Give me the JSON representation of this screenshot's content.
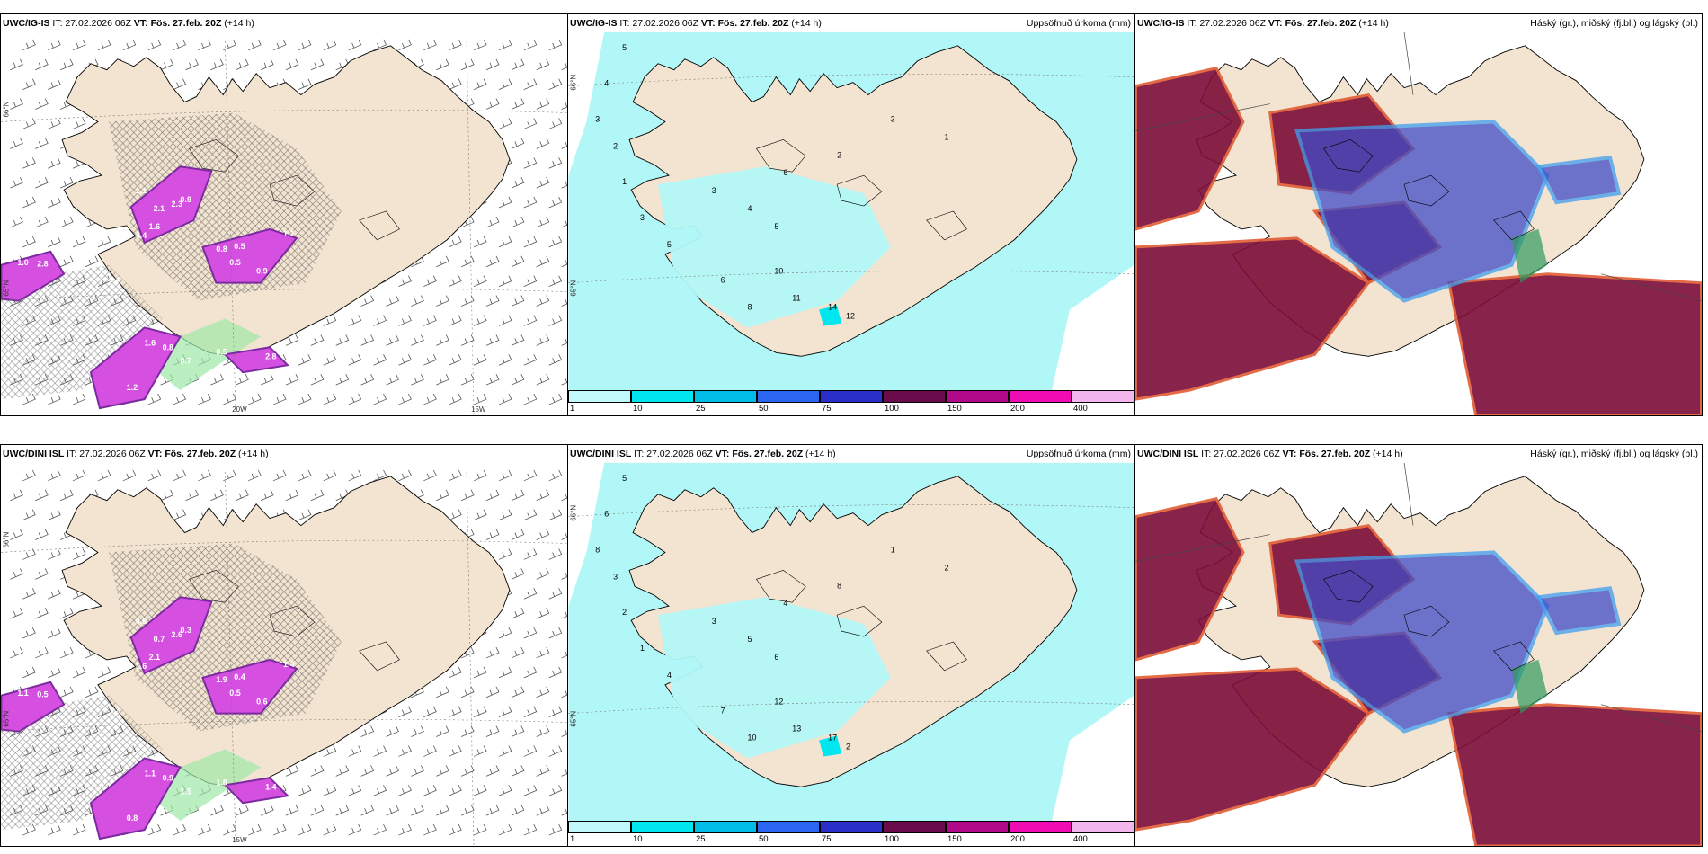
{
  "rows": [
    {
      "model": "UWC/IG-IS",
      "panels": [
        {
          "header_it_label": "IT:",
          "header_it": "27.02.2026 06Z",
          "header_vt_label": "VT:",
          "header_vt": "Fös. 27.feb. 20Z",
          "header_lead": "(+14 h)",
          "right_title": "",
          "precip_labels": [
            "1.0",
            "2.8",
            "1.1",
            "2.1",
            "1.6",
            "2.3",
            "4.4",
            "0.8",
            "0.5",
            "1.1",
            "0.9",
            "0.5",
            "0.9",
            "1.6",
            "0.8",
            "0.7",
            "0.5",
            "2.8",
            "1.2",
            "0.4"
          ],
          "lat_labels": [
            "66°N",
            "65°N"
          ],
          "lon_labels": [
            "20W",
            "15W"
          ]
        },
        {
          "header_it_label": "IT:",
          "header_it": "27.02.2026 06Z",
          "header_vt_label": "VT:",
          "header_vt": "Fös. 27.feb. 20Z",
          "header_lead": "(+14 h)",
          "right_title": "Uppsöfnuð úrkoma (mm)",
          "precip_labels": [
            "5",
            "4",
            "3",
            "2",
            "1",
            "3",
            "5",
            "6",
            "8",
            "10",
            "11",
            "14",
            "12",
            "3",
            "4",
            "5",
            "6",
            "2",
            "3",
            "1"
          ],
          "lat_labels": [
            "66°N",
            "65°N"
          ],
          "lon_labels": []
        },
        {
          "header_it_label": "IT:",
          "header_it": "27.02.2026 06Z",
          "header_vt_label": "VT:",
          "header_vt": "Fös. 27.feb. 20Z",
          "header_lead": "(+14 h)",
          "right_title": "Háský (gr.), miðský (fj.bl.) og lágský (bl.)",
          "precip_labels": [],
          "lat_labels": [],
          "lon_labels": []
        }
      ]
    },
    {
      "model": "UWC/DINI ISL",
      "panels": [
        {
          "header_it_label": "IT:",
          "header_it": "27.02.2026 06Z",
          "header_vt_label": "VT:",
          "header_vt": "Fös. 27.feb. 20Z",
          "header_lead": "(+14 h)",
          "right_title": "",
          "precip_labels": [
            "1.1",
            "0.5",
            "0.6",
            "0.7",
            "2.1",
            "2.6",
            "1.6",
            "1.9",
            "0.4",
            "1.4",
            "0.6",
            "0.5",
            "0.3",
            "1.1",
            "0.9",
            "1.5",
            "1.8",
            "1.4",
            "0.8",
            "1.2"
          ],
          "lat_labels": [
            "66°N",
            "65°N"
          ],
          "lon_labels": [
            "15W"
          ]
        },
        {
          "header_it_label": "IT:",
          "header_it": "27.02.2026 06Z",
          "header_vt_label": "VT:",
          "header_vt": "Fös. 27.feb. 20Z",
          "header_lead": "(+14 h)",
          "right_title": "Uppsöfnuð úrkoma (mm)",
          "precip_labels": [
            "5",
            "6",
            "8",
            "3",
            "2",
            "1",
            "4",
            "7",
            "10",
            "12",
            "13",
            "17",
            "2",
            "3",
            "5",
            "6",
            "4",
            "8",
            "1",
            "2"
          ],
          "lat_labels": [
            "66°N",
            "65°N"
          ],
          "lon_labels": []
        },
        {
          "header_it_label": "IT:",
          "header_it": "27.02.2026 06Z",
          "header_vt_label": "VT:",
          "header_vt": "Fös. 27.feb. 20Z",
          "header_lead": "(+14 h)",
          "right_title": "Háský (gr.), miðský (fj.bl.) og lágský (bl.)",
          "precip_labels": [],
          "lat_labels": [],
          "lon_labels": []
        }
      ]
    }
  ],
  "colorbar": {
    "ticks": [
      "1",
      "10",
      "25",
      "50",
      "75",
      "100",
      "150",
      "200",
      "400"
    ],
    "colors": [
      "#bff9fb",
      "#00e7ef",
      "#00bde6",
      "#2a66f0",
      "#2b2fc9",
      "#6a0b4c",
      "#b00a8a",
      "#ef0cb2",
      "#f4b6ee"
    ]
  },
  "colors": {
    "land": "#f3e4d1",
    "sea_precip": "#b2f7f7",
    "coast": "#000000",
    "precip_pink": "#d54fe0",
    "precip_purple": "#7b2ba0",
    "snow_green": "#9ee8a8",
    "hatch": "#555555",
    "cloud_high": "#2f9a5e",
    "cloud_mid": "#3f4bc8",
    "cloud_low": "#7c0c38",
    "cloud_low_light": "#3f9df0"
  }
}
